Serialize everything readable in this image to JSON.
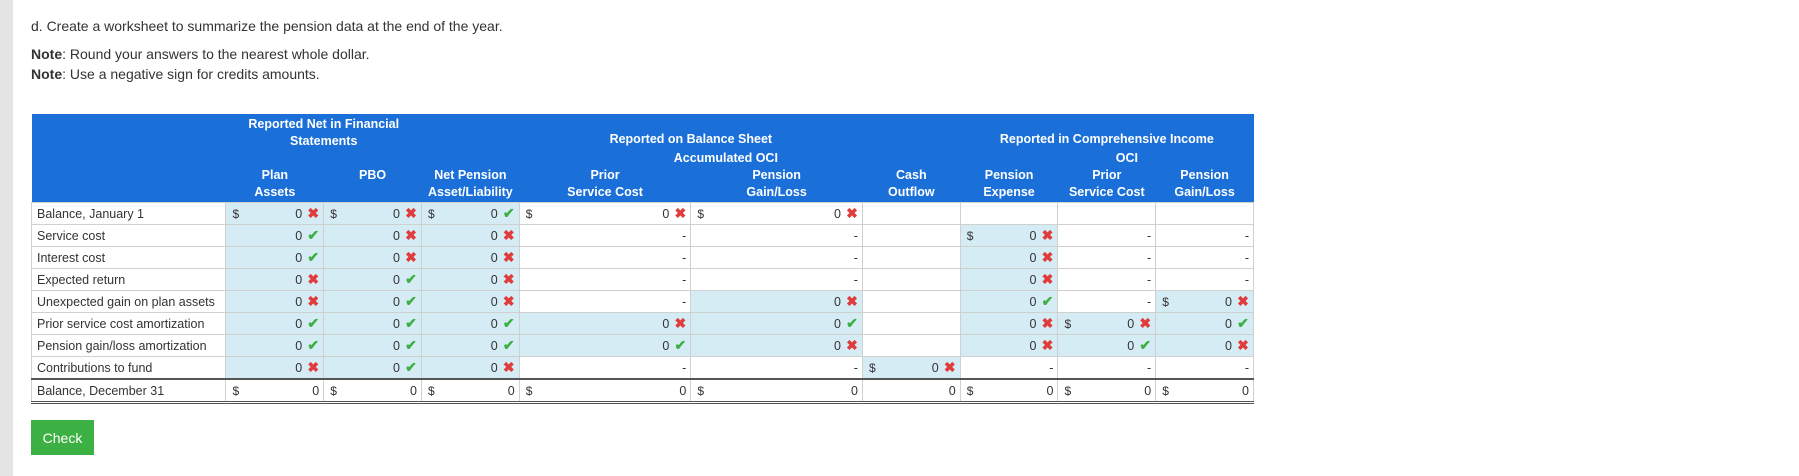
{
  "intro": "d. Create a worksheet to summarize the pension data at the end of the year.",
  "notes": [
    {
      "label": "Note",
      "text": ": Round your answers to the nearest whole dollar."
    },
    {
      "label": "Note",
      "text": ": Use a negative sign for credits amounts."
    }
  ],
  "header": {
    "group1": "Reported Net in Financial Statements",
    "group2": "Reported on Balance Sheet",
    "group2_sub": "Accumulated OCI",
    "group3": "Reported in Comprehensive Income",
    "group3_sub": "OCI",
    "columns": [
      [
        "Plan",
        "Assets"
      ],
      [
        "PBO",
        ""
      ],
      [
        "Net Pension",
        "Asset/Liability"
      ],
      [
        "Prior",
        "Service Cost"
      ],
      [
        "Pension",
        "Gain/Loss"
      ],
      [
        "Cash",
        "Outflow"
      ],
      [
        "Pension",
        "Expense"
      ],
      [
        "Prior",
        "Service Cost"
      ],
      [
        "Pension",
        "Gain/Loss"
      ]
    ]
  },
  "rows": [
    {
      "label": "Balance, January 1",
      "cells": [
        {
          "d": "$",
          "v": "0",
          "m": "x",
          "c": "blue"
        },
        {
          "d": "$",
          "v": "0",
          "m": "x",
          "c": "blue"
        },
        {
          "d": "$",
          "v": "0",
          "m": "check",
          "c": "blue"
        },
        {
          "d": "$",
          "v": "0",
          "m": "x",
          "c": "white"
        },
        {
          "d": "$",
          "v": "0",
          "m": "x",
          "c": "white"
        },
        {
          "d": "",
          "v": "",
          "m": "",
          "c": "white"
        },
        {
          "d": "",
          "v": "",
          "m": "",
          "c": "white"
        },
        {
          "d": "",
          "v": "",
          "m": "",
          "c": "white"
        },
        {
          "d": "",
          "v": "",
          "m": "",
          "c": "white"
        }
      ]
    },
    {
      "label": "Service cost",
      "cells": [
        {
          "d": "",
          "v": "0",
          "m": "check",
          "c": "blue"
        },
        {
          "d": "",
          "v": "0",
          "m": "x",
          "c": "blue"
        },
        {
          "d": "",
          "v": "0",
          "m": "x",
          "c": "blue"
        },
        {
          "d": "",
          "v": "-",
          "m": "",
          "c": "white"
        },
        {
          "d": "",
          "v": "-",
          "m": "",
          "c": "white"
        },
        {
          "d": "",
          "v": "",
          "m": "",
          "c": "white"
        },
        {
          "d": "$",
          "v": "0",
          "m": "x",
          "c": "blue"
        },
        {
          "d": "",
          "v": "-",
          "m": "",
          "c": "white"
        },
        {
          "d": "",
          "v": "-",
          "m": "",
          "c": "white"
        }
      ]
    },
    {
      "label": "Interest cost",
      "cells": [
        {
          "d": "",
          "v": "0",
          "m": "check",
          "c": "blue"
        },
        {
          "d": "",
          "v": "0",
          "m": "x",
          "c": "blue"
        },
        {
          "d": "",
          "v": "0",
          "m": "x",
          "c": "blue"
        },
        {
          "d": "",
          "v": "-",
          "m": "",
          "c": "white"
        },
        {
          "d": "",
          "v": "-",
          "m": "",
          "c": "white"
        },
        {
          "d": "",
          "v": "",
          "m": "",
          "c": "white"
        },
        {
          "d": "",
          "v": "0",
          "m": "x",
          "c": "blue"
        },
        {
          "d": "",
          "v": "-",
          "m": "",
          "c": "white"
        },
        {
          "d": "",
          "v": "-",
          "m": "",
          "c": "white"
        }
      ]
    },
    {
      "label": "Expected return",
      "cells": [
        {
          "d": "",
          "v": "0",
          "m": "x",
          "c": "blue"
        },
        {
          "d": "",
          "v": "0",
          "m": "check",
          "c": "blue"
        },
        {
          "d": "",
          "v": "0",
          "m": "x",
          "c": "blue"
        },
        {
          "d": "",
          "v": "-",
          "m": "",
          "c": "white"
        },
        {
          "d": "",
          "v": "-",
          "m": "",
          "c": "white"
        },
        {
          "d": "",
          "v": "",
          "m": "",
          "c": "white"
        },
        {
          "d": "",
          "v": "0",
          "m": "x",
          "c": "blue"
        },
        {
          "d": "",
          "v": "-",
          "m": "",
          "c": "white"
        },
        {
          "d": "",
          "v": "-",
          "m": "",
          "c": "white"
        }
      ]
    },
    {
      "label": "Unexpected gain on plan assets",
      "cells": [
        {
          "d": "",
          "v": "0",
          "m": "x",
          "c": "blue"
        },
        {
          "d": "",
          "v": "0",
          "m": "check",
          "c": "blue"
        },
        {
          "d": "",
          "v": "0",
          "m": "x",
          "c": "blue"
        },
        {
          "d": "",
          "v": "-",
          "m": "",
          "c": "white"
        },
        {
          "d": "",
          "v": "0",
          "m": "x",
          "c": "blue"
        },
        {
          "d": "",
          "v": "",
          "m": "",
          "c": "white"
        },
        {
          "d": "",
          "v": "0",
          "m": "check",
          "c": "blue"
        },
        {
          "d": "",
          "v": "-",
          "m": "",
          "c": "white"
        },
        {
          "d": "$",
          "v": "0",
          "m": "x",
          "c": "blue"
        }
      ]
    },
    {
      "label": "Prior service cost amortization",
      "cells": [
        {
          "d": "",
          "v": "0",
          "m": "check",
          "c": "blue"
        },
        {
          "d": "",
          "v": "0",
          "m": "check",
          "c": "blue"
        },
        {
          "d": "",
          "v": "0",
          "m": "check",
          "c": "blue"
        },
        {
          "d": "",
          "v": "0",
          "m": "x",
          "c": "blue"
        },
        {
          "d": "",
          "v": "0",
          "m": "check",
          "c": "blue"
        },
        {
          "d": "",
          "v": "",
          "m": "",
          "c": "white"
        },
        {
          "d": "",
          "v": "0",
          "m": "x",
          "c": "blue"
        },
        {
          "d": "$",
          "v": "0",
          "m": "x",
          "c": "blue"
        },
        {
          "d": "",
          "v": "0",
          "m": "check",
          "c": "blue"
        }
      ]
    },
    {
      "label": "Pension gain/loss amortization",
      "cells": [
        {
          "d": "",
          "v": "0",
          "m": "check",
          "c": "blue"
        },
        {
          "d": "",
          "v": "0",
          "m": "check",
          "c": "blue"
        },
        {
          "d": "",
          "v": "0",
          "m": "check",
          "c": "blue"
        },
        {
          "d": "",
          "v": "0",
          "m": "check",
          "c": "blue"
        },
        {
          "d": "",
          "v": "0",
          "m": "x",
          "c": "blue"
        },
        {
          "d": "",
          "v": "",
          "m": "",
          "c": "white"
        },
        {
          "d": "",
          "v": "0",
          "m": "x",
          "c": "blue"
        },
        {
          "d": "",
          "v": "0",
          "m": "check",
          "c": "blue"
        },
        {
          "d": "",
          "v": "0",
          "m": "x",
          "c": "blue"
        }
      ]
    },
    {
      "label": "Contributions to fund",
      "cells": [
        {
          "d": "",
          "v": "0",
          "m": "x",
          "c": "blue"
        },
        {
          "d": "",
          "v": "0",
          "m": "check",
          "c": "blue"
        },
        {
          "d": "",
          "v": "0",
          "m": "x",
          "c": "blue"
        },
        {
          "d": "",
          "v": "-",
          "m": "",
          "c": "white"
        },
        {
          "d": "",
          "v": "-",
          "m": "",
          "c": "white"
        },
        {
          "d": "$",
          "v": "0",
          "m": "x",
          "c": "blue"
        },
        {
          "d": "",
          "v": "-",
          "m": "",
          "c": "white"
        },
        {
          "d": "",
          "v": "-",
          "m": "",
          "c": "white"
        },
        {
          "d": "",
          "v": "-",
          "m": "",
          "c": "white"
        }
      ]
    },
    {
      "label": "Balance, December 31",
      "total": true,
      "cells": [
        {
          "d": "$",
          "v": "0",
          "m": "",
          "c": "white"
        },
        {
          "d": "$",
          "v": "0",
          "m": "",
          "c": "white"
        },
        {
          "d": "$",
          "v": "0",
          "m": "",
          "c": "white"
        },
        {
          "d": "$",
          "v": "0",
          "m": "",
          "c": "white"
        },
        {
          "d": "$",
          "v": "0",
          "m": "",
          "c": "white"
        },
        {
          "d": "",
          "v": "0",
          "m": "",
          "c": "white"
        },
        {
          "d": "$",
          "v": "0",
          "m": "",
          "c": "white"
        },
        {
          "d": "$",
          "v": "0",
          "m": "",
          "c": "white"
        },
        {
          "d": "$",
          "v": "0",
          "m": "",
          "c": "white"
        }
      ]
    }
  ],
  "check_button": "Check",
  "colors": {
    "header_bg": "#1a6fd8",
    "input_bg": "#d6ecf4",
    "check": "#3cb043",
    "cross": "#e03c3c",
    "button": "#3cb043"
  }
}
